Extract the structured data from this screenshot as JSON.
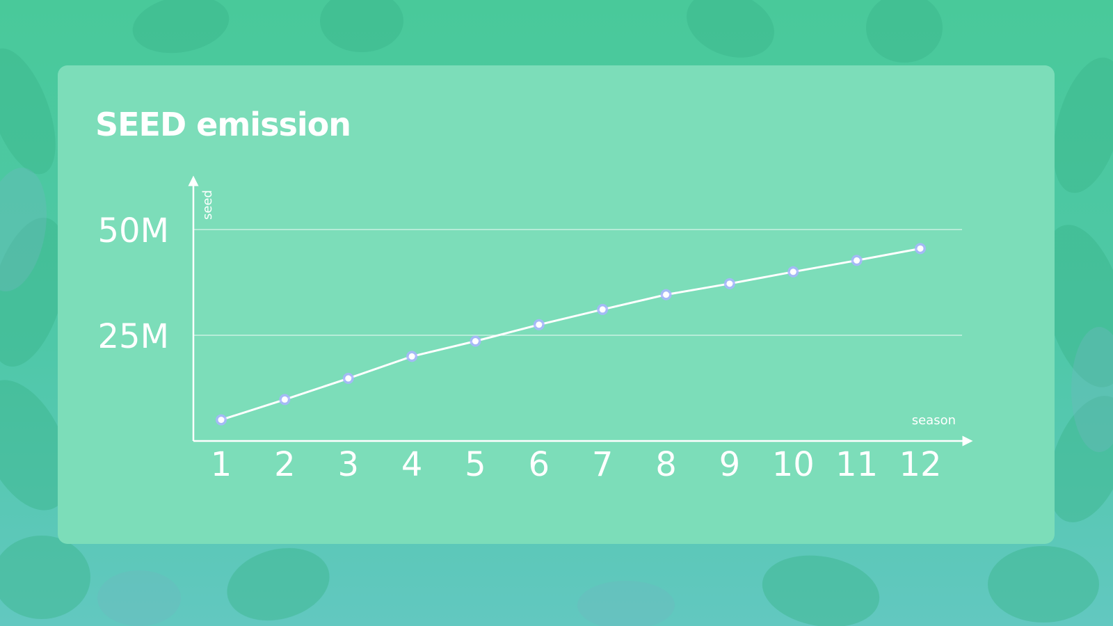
{
  "chart_data": {
    "type": "line",
    "title": "SEED emission",
    "xlabel": "season",
    "ylabel": "seed",
    "categories": [
      "1",
      "2",
      "3",
      "4",
      "5",
      "6",
      "7",
      "8",
      "9",
      "10",
      "11",
      "12"
    ],
    "y_ticks": [
      {
        "value": 25,
        "label": "25M"
      },
      {
        "value": 50,
        "label": "50M"
      }
    ],
    "ylim": [
      0,
      50
    ],
    "grid": true,
    "series": [
      {
        "values": [
          5,
          9.8,
          14.8,
          20,
          23.6,
          27.5,
          31.1,
          34.6,
          37.2,
          40,
          42.7,
          45.5
        ]
      }
    ]
  },
  "colors": {
    "background": "#49c99a",
    "card": "#7cddb9",
    "line": "#ffffff",
    "marker_halo": "#aab4ff"
  }
}
